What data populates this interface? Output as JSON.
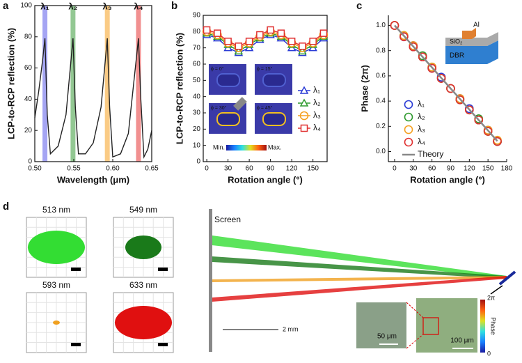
{
  "chart_data": [
    {
      "type": "line",
      "panel": "a",
      "x_label": "Wavelength (μm)",
      "y_label": "LCP-to-RCP reflection (%)",
      "frame": true,
      "x": [
        0.5,
        0.505,
        0.51,
        0.513,
        0.516,
        0.52,
        0.53,
        0.54,
        0.549,
        0.552,
        0.556,
        0.565,
        0.575,
        0.585,
        0.593,
        0.596,
        0.6,
        0.61,
        0.62,
        0.633,
        0.636,
        0.64,
        0.645,
        0.65
      ],
      "series": [
        {
          "color": "#222222",
          "values": [
            28,
            45,
            65,
            79,
            30,
            5,
            10,
            30,
            79,
            35,
            5,
            5,
            12,
            35,
            79,
            35,
            3,
            5,
            18,
            79,
            40,
            3,
            8,
            20
          ]
        }
      ],
      "highlights": [
        {
          "label": "λ₁",
          "x": 0.513,
          "color": "#5b5bea"
        },
        {
          "label": "λ₂",
          "x": 0.549,
          "color": "#3a9a3a"
        },
        {
          "label": "λ₃",
          "x": 0.593,
          "color": "#f5a020"
        },
        {
          "label": "λ₄",
          "x": 0.633,
          "color": "#e53535"
        }
      ],
      "xlim": [
        0.5,
        0.65
      ],
      "xticks": [
        {
          "value": 0.5,
          "label": "0.50"
        },
        0.55,
        {
          "value": 0.6,
          "label": "0.60"
        },
        0.65
      ],
      "ylim": [
        0,
        100
      ],
      "yticks": [
        0,
        20,
        40,
        60,
        80,
        100
      ]
    },
    {
      "type": "line",
      "panel": "b",
      "x_label": "Rotation angle (°)",
      "y_label": "LCP-to-RCP reflection (%)",
      "frame": true,
      "x": [
        0,
        15,
        30,
        45,
        60,
        75,
        90,
        105,
        120,
        135,
        150,
        165
      ],
      "series": [
        {
          "name": "λ₁",
          "color": "#2a3bd6",
          "marker": "triangle",
          "values": [
            78,
            76,
            70,
            67,
            70,
            75,
            78,
            76,
            70,
            67,
            70,
            76
          ]
        },
        {
          "name": "λ₂",
          "color": "#2e9a2e",
          "marker": "triangle",
          "values": [
            79,
            77,
            72,
            68,
            72,
            76,
            79,
            77,
            72,
            68,
            72,
            77
          ]
        },
        {
          "name": "λ₃",
          "color": "#f5a020",
          "marker": "circle",
          "values": [
            80,
            78,
            73,
            70,
            73,
            77,
            80,
            78,
            73,
            70,
            73,
            78
          ]
        },
        {
          "name": "λ₄",
          "color": "#e03030",
          "marker": "square",
          "values": [
            81,
            79,
            74,
            71,
            74,
            78,
            81,
            79,
            74,
            71,
            74,
            79
          ]
        }
      ],
      "inset_labels": [
        "ϕ = 0°",
        "ϕ = 15°",
        "ϕ = 30°",
        "ϕ = 45°"
      ],
      "colorbar_labels": [
        "Min.",
        "Max."
      ],
      "xlim": [
        -5,
        170
      ],
      "xticks": [
        0,
        30,
        60,
        90,
        120,
        150
      ],
      "ylim": [
        0,
        90
      ],
      "yticks": [
        0,
        10,
        20,
        30,
        40,
        50,
        60,
        70,
        80,
        90
      ]
    },
    {
      "type": "scatter",
      "panel": "c",
      "x_label": "Rotation angle (°)",
      "y_label": "Phase (2π)",
      "frame": false,
      "x": [
        0,
        15,
        30,
        45,
        60,
        75,
        90,
        105,
        120,
        135,
        150,
        165
      ],
      "series": [
        {
          "name": "λ₁",
          "color": "#2a3bd6",
          "marker": "circle",
          "line": false,
          "values": [
            1.0,
            0.91,
            0.84,
            0.75,
            0.66,
            0.59,
            0.5,
            0.42,
            0.34,
            0.25,
            0.17,
            0.08
          ]
        },
        {
          "name": "λ₂",
          "color": "#2e9a2e",
          "marker": "circle",
          "line": false,
          "values": [
            1.0,
            0.92,
            0.83,
            0.76,
            0.67,
            0.58,
            0.5,
            0.41,
            0.33,
            0.26,
            0.16,
            0.08
          ]
        },
        {
          "name": "λ₃",
          "color": "#f5a020",
          "marker": "circle",
          "line": false,
          "values": [
            1.0,
            0.92,
            0.84,
            0.75,
            0.67,
            0.58,
            0.5,
            0.42,
            0.33,
            0.25,
            0.17,
            0.09
          ]
        },
        {
          "name": "λ₄",
          "color": "#e03030",
          "marker": "circle",
          "line": false,
          "values": [
            1.0,
            0.91,
            0.83,
            0.75,
            0.66,
            0.58,
            0.5,
            0.41,
            0.33,
            0.25,
            0.16,
            0.08
          ]
        },
        {
          "name": "Theory",
          "color": "#888888",
          "values": [
            1.0,
            0.917,
            0.833,
            0.75,
            0.667,
            0.583,
            0.5,
            0.417,
            0.333,
            0.25,
            0.167,
            0.083
          ]
        }
      ],
      "inset_labels": [
        "Al",
        "SiO₂",
        "DBR"
      ],
      "xlim": [
        -10,
        180
      ],
      "xticks": [
        0,
        30,
        60,
        90,
        120,
        150,
        180
      ],
      "ylim": [
        -0.08,
        1.08
      ],
      "yticks": [
        {
          "value": 0,
          "label": "0.0"
        },
        0.2,
        0.4,
        0.6,
        0.8,
        {
          "value": 1,
          "label": "1.0"
        }
      ]
    }
  ],
  "panel_d": {
    "label": "d",
    "spots": [
      {
        "label": "513 nm",
        "color": "#33dd33"
      },
      {
        "label": "549 nm",
        "color": "#1a7a1a"
      },
      {
        "label": "593 nm",
        "color": "#f0a020"
      },
      {
        "label": "633 nm",
        "color": "#e01010"
      }
    ],
    "screen": "Screen",
    "scale": "2 mm",
    "insets": [
      "50 μm",
      "100 μm"
    ],
    "colorbar": {
      "title": "Phase",
      "max": "2π",
      "min": "0"
    }
  }
}
